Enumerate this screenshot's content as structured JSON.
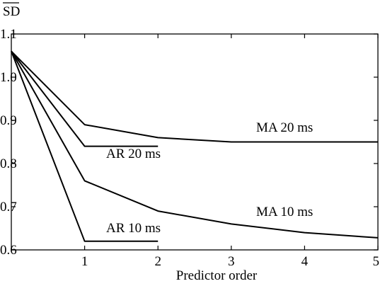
{
  "chart_data": {
    "type": "line",
    "ylabel": "SD",
    "xlabel": "Predictor order",
    "xlim": [
      0,
      5
    ],
    "ylim": [
      0.6,
      1.1
    ],
    "x_ticks": [
      "1",
      "2",
      "3",
      "4",
      "5"
    ],
    "y_ticks": [
      "0.6",
      "0.7",
      "0.8",
      "0.9",
      "1.0",
      "1.1"
    ],
    "grid": false,
    "legend": "none",
    "series": [
      {
        "name": "MA 20 ms",
        "x": [
          0,
          1,
          2,
          3,
          4,
          5
        ],
        "y": [
          1.06,
          0.89,
          0.86,
          0.85,
          0.85,
          0.85
        ]
      },
      {
        "name": "AR 20 ms",
        "x": [
          0,
          1,
          2
        ],
        "y": [
          1.06,
          0.84,
          0.84
        ]
      },
      {
        "name": "MA 10 ms",
        "x": [
          0,
          1,
          2,
          3,
          4,
          5
        ],
        "y": [
          1.06,
          0.76,
          0.69,
          0.66,
          0.64,
          0.628
        ]
      },
      {
        "name": "AR 10 ms",
        "x": [
          0,
          1,
          2
        ],
        "y": [
          1.06,
          0.62,
          0.62
        ]
      }
    ]
  }
}
